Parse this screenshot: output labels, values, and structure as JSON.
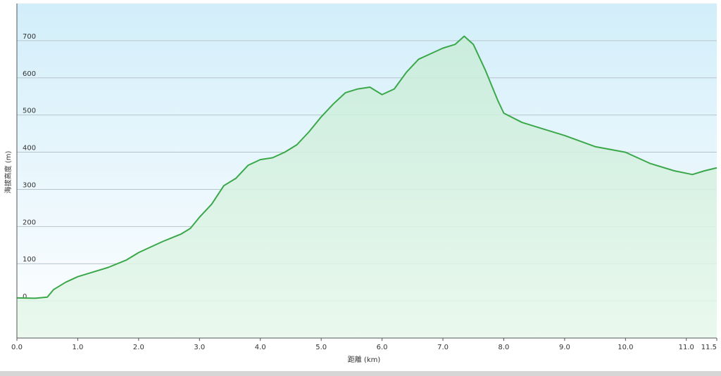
{
  "chart_data": {
    "type": "line",
    "x_label": "距離 (km)",
    "y_label": "海拔高度 (m)",
    "x": [
      0,
      0.3,
      0.5,
      0.6,
      0.8,
      1.0,
      1.2,
      1.5,
      1.8,
      2.0,
      2.2,
      2.4,
      2.7,
      2.85,
      3.0,
      3.2,
      3.4,
      3.6,
      3.8,
      4.0,
      4.2,
      4.4,
      4.6,
      4.8,
      5.0,
      5.2,
      5.4,
      5.6,
      5.8,
      6.0,
      6.2,
      6.4,
      6.6,
      6.8,
      7.0,
      7.2,
      7.35,
      7.5,
      7.7,
      7.9,
      8.0,
      8.3,
      8.6,
      9.0,
      9.5,
      10.0,
      10.4,
      10.8,
      11.1,
      11.3,
      11.5
    ],
    "values": [
      8,
      7,
      10,
      30,
      50,
      65,
      75,
      90,
      110,
      130,
      145,
      160,
      180,
      195,
      225,
      260,
      310,
      330,
      365,
      380,
      385,
      400,
      420,
      455,
      495,
      530,
      560,
      570,
      575,
      555,
      570,
      615,
      650,
      665,
      680,
      690,
      712,
      690,
      620,
      540,
      505,
      480,
      465,
      445,
      415,
      400,
      370,
      350,
      340,
      350,
      358
    ],
    "color": "#3aa84a",
    "xlim": [
      0,
      11.5
    ],
    "ylim": [
      -100,
      800
    ],
    "xticks": [
      {
        "value": 0,
        "label": "0.0"
      },
      {
        "value": 1,
        "label": "1.0"
      },
      {
        "value": 2,
        "label": "2.0"
      },
      {
        "value": 3,
        "label": "3.0"
      },
      {
        "value": 4,
        "label": "4.0"
      },
      {
        "value": 5,
        "label": "5.0"
      },
      {
        "value": 6,
        "label": "6.0"
      },
      {
        "value": 7,
        "label": "7.0"
      },
      {
        "value": 8,
        "label": "8.0"
      },
      {
        "value": 9,
        "label": "9.0"
      },
      {
        "value": 10,
        "label": "10.0"
      },
      {
        "value": 11,
        "label": "11.0"
      },
      {
        "value": 11.5,
        "label": "11.5"
      }
    ],
    "yticks": [
      0,
      100,
      200,
      300,
      400,
      500,
      600,
      700
    ],
    "grid": true
  }
}
